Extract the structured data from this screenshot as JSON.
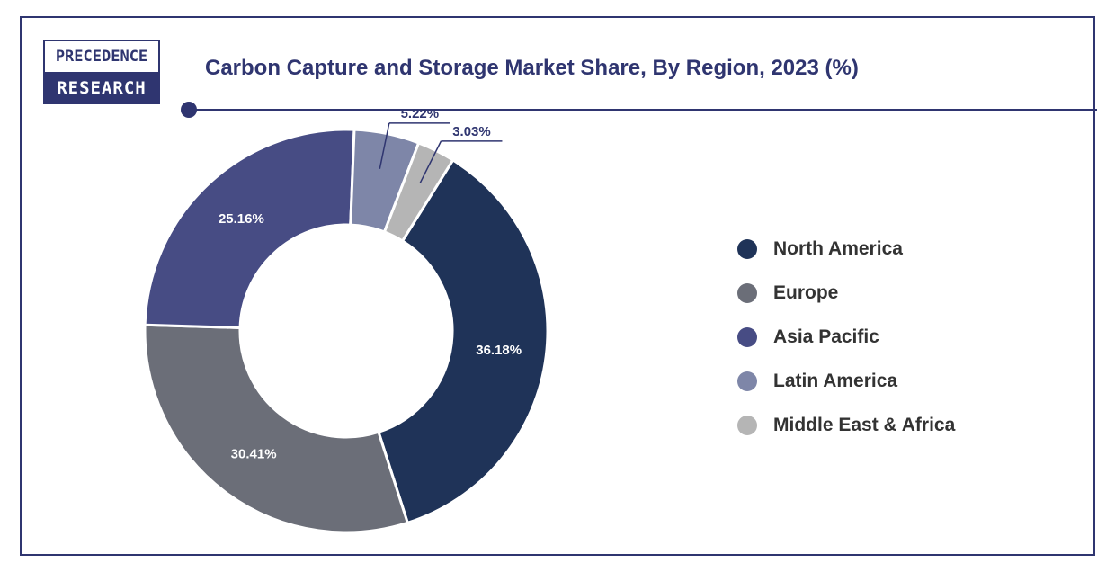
{
  "logo": {
    "line1": "PRECEDENCE",
    "line2": "RESEARCH"
  },
  "chart_data": {
    "type": "pie",
    "variant": "donut",
    "title": "Carbon Capture and Storage Market Share, By Region, 2023 (%)",
    "categories": [
      "North America",
      "Europe",
      "Asia Pacific",
      "Latin America",
      "Middle East & Africa"
    ],
    "values": [
      36.18,
      30.41,
      25.16,
      5.22,
      3.03
    ],
    "labels": [
      "36.18%",
      "30.41%",
      "25.16%",
      "5.22%",
      "3.03%"
    ],
    "colors": [
      "#1f3358",
      "#6b6e78",
      "#474c84",
      "#7e86a8",
      "#b5b5b5"
    ],
    "legend_position": "right"
  }
}
